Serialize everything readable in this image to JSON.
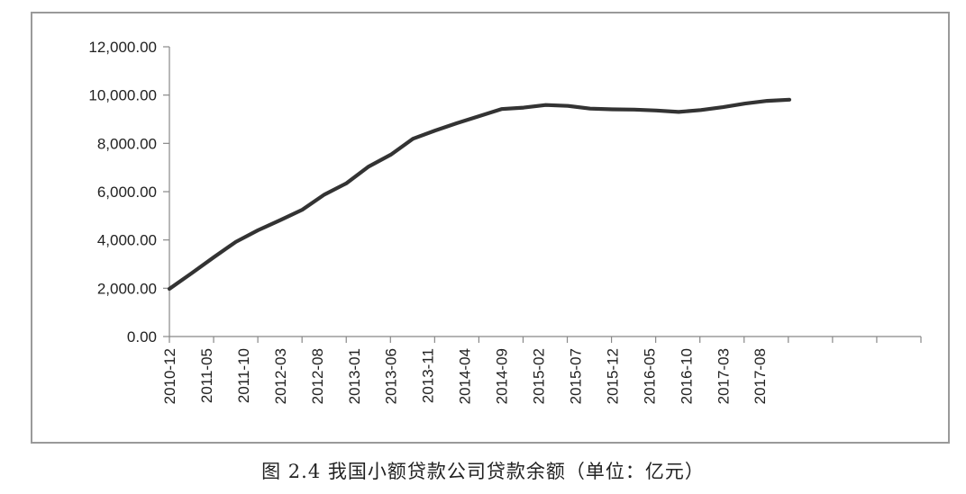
{
  "caption": "图 2.4 我国小额贷款公司贷款余额（单位：亿元）",
  "chart_data": {
    "type": "line",
    "title": "",
    "xlabel": "",
    "ylabel": "",
    "ylim": [
      0,
      12000
    ],
    "yticks": [
      "0.00",
      "2,000.00",
      "4,000.00",
      "6,000.00",
      "8,000.00",
      "10,000.00",
      "12,000.00"
    ],
    "ytick_values": [
      0,
      2000,
      4000,
      6000,
      8000,
      10000,
      12000
    ],
    "x_tick_labels": [
      "2010-12",
      "2011-05",
      "2011-10",
      "2012-03",
      "2012-08",
      "2013-01",
      "2013-06",
      "2013-11",
      "2014-04",
      "2014-09",
      "2015-02",
      "2015-07",
      "2015-12",
      "2016-05",
      "2016-10",
      "2017-03",
      "2017-08"
    ],
    "grid": false,
    "legend": "none",
    "line_color": "#333333",
    "series": [
      {
        "x": [
          "2010-12",
          "2011-03",
          "2011-06",
          "2011-09",
          "2011-12",
          "2012-03",
          "2012-06",
          "2012-09",
          "2012-12",
          "2013-03",
          "2013-06",
          "2013-09",
          "2013-12",
          "2014-03",
          "2014-06",
          "2014-09",
          "2014-12",
          "2015-03",
          "2015-06",
          "2015-09",
          "2015-12",
          "2016-03",
          "2016-06",
          "2016-09",
          "2016-12",
          "2017-03",
          "2017-06",
          "2017-09",
          "2017-12"
        ],
        "values": [
          1975,
          2620,
          3280,
          3920,
          4400,
          4820,
          5250,
          5880,
          6350,
          7040,
          7530,
          8190,
          8530,
          8840,
          9130,
          9420,
          9480,
          9590,
          9550,
          9440,
          9410,
          9400,
          9360,
          9300,
          9380,
          9500,
          9650,
          9760,
          9810
        ]
      }
    ]
  }
}
